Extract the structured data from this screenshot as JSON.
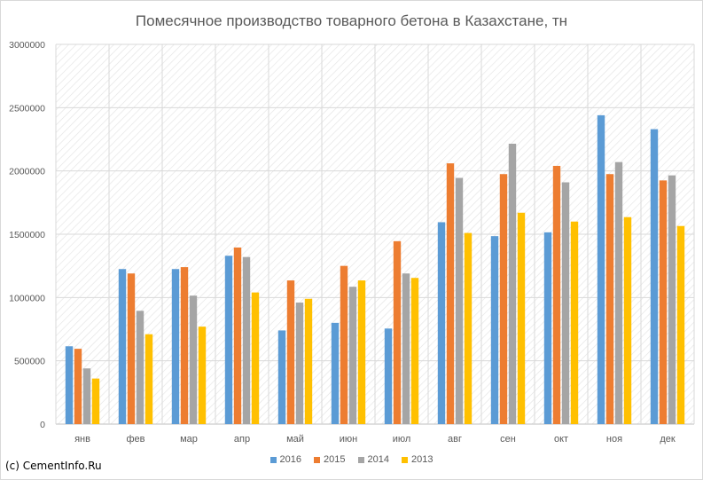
{
  "chart_data": {
    "type": "bar",
    "title": "Помесячное производство товарного бетона в Казахстане, тн",
    "categories": [
      "янв",
      "фев",
      "мар",
      "апр",
      "май",
      "июн",
      "июл",
      "авг",
      "сен",
      "окт",
      "ноя",
      "дек"
    ],
    "series": [
      {
        "name": "2016",
        "color": "#5b9bd5",
        "values": [
          615000,
          1225000,
          1225000,
          1330000,
          740000,
          800000,
          755000,
          1595000,
          1485000,
          1515000,
          2440000,
          2330000
        ]
      },
      {
        "name": "2015",
        "color": "#ed7d31",
        "values": [
          595000,
          1190000,
          1240000,
          1395000,
          1135000,
          1250000,
          1445000,
          2060000,
          1975000,
          2040000,
          1975000,
          1925000
        ]
      },
      {
        "name": "2014",
        "color": "#a5a5a5",
        "values": [
          440000,
          895000,
          1015000,
          1320000,
          960000,
          1085000,
          1190000,
          1945000,
          2215000,
          1910000,
          2070000,
          1965000
        ]
      },
      {
        "name": "2013",
        "color": "#ffc000",
        "values": [
          360000,
          710000,
          770000,
          1040000,
          990000,
          1135000,
          1155000,
          1510000,
          1670000,
          1600000,
          1635000,
          1565000
        ]
      }
    ],
    "ylim": [
      0,
      3000000
    ],
    "yticks": [
      0,
      500000,
      1000000,
      1500000,
      2000000,
      2500000,
      3000000
    ],
    "grid": true,
    "legend_position": "bottom"
  },
  "credit": "(c) CementInfo.Ru"
}
